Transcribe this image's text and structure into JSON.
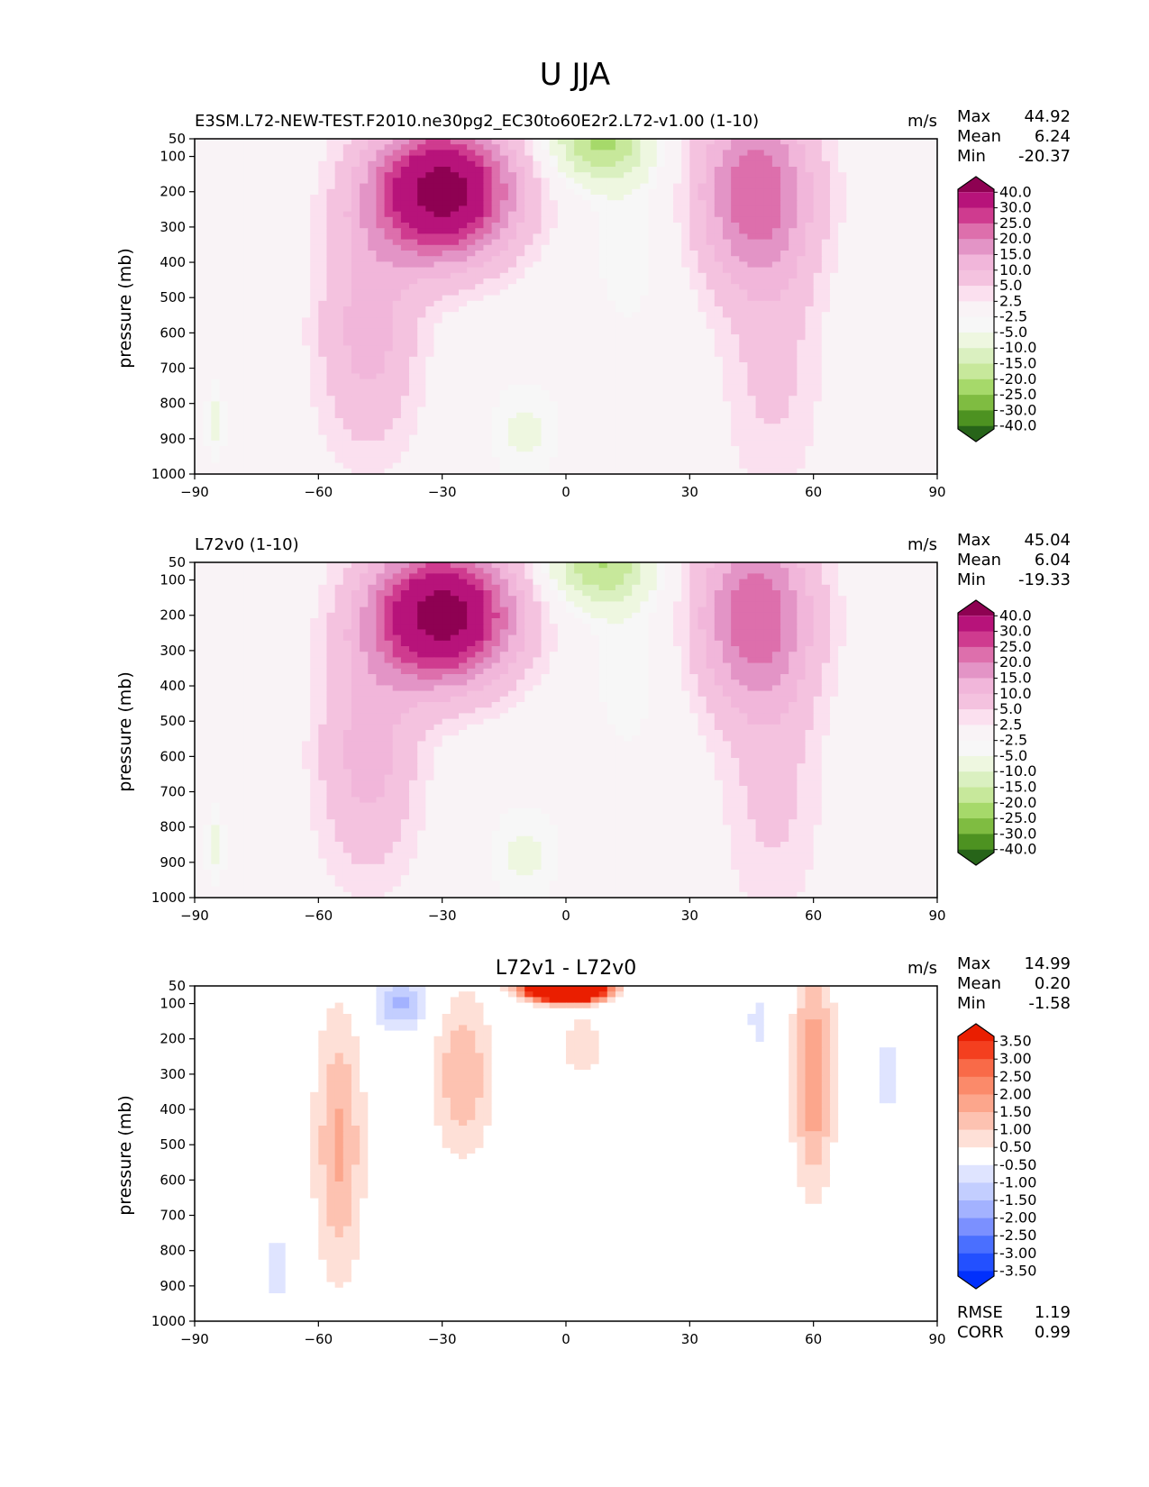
{
  "figure_title": "U JJA",
  "colors": {
    "model_levels": [
      "#276419",
      "#4d9221",
      "#7fbc41",
      "#a6d96a",
      "#c7e89b",
      "#daf0c0",
      "#eef7e0",
      "#f7f7f7",
      "#f9f3f6",
      "#fbe0ef",
      "#f4c2df",
      "#f1b6da",
      "#e394c6",
      "#dd6fac",
      "#cf3b8f",
      "#b7137a",
      "#8e0152"
    ],
    "diff_levels": [
      "#0130fc",
      "#2350ff",
      "#4a6fff",
      "#7b90ff",
      "#a3b2ff",
      "#c3ceff",
      "#dfe4ff",
      "#ffffff",
      "#fee0d7",
      "#fdc2b1",
      "#fca68c",
      "#fb8a6a",
      "#f96a48",
      "#f43f1f",
      "#ea1e00"
    ]
  },
  "chart_data": [
    {
      "type": "contour",
      "title": "E3SM.L72-NEW-TEST.F2010.ne30pg2_EC30to60E2r2.L72-v1.00 (1-10)",
      "units": "m/s",
      "xlabel": "",
      "ylabel": "pressure (mb)",
      "xlim": [
        -90,
        90
      ],
      "ylim": [
        1000,
        50
      ],
      "x_ticks": [
        -90,
        -60,
        -30,
        0,
        30,
        60,
        90
      ],
      "x_tick_labels": [
        "−90",
        "−60",
        "−30",
        "0",
        "30",
        "60",
        "90"
      ],
      "y_ticks": [
        50,
        100,
        200,
        300,
        400,
        500,
        600,
        700,
        800,
        900,
        1000
      ],
      "stats": {
        "Max": "44.92",
        "Mean": "6.24",
        "Min": "-20.37"
      },
      "colorbar_labels": [
        "40.0",
        "30.0",
        "25.0",
        "20.0",
        "15.0",
        "10.0",
        "5.0",
        "2.5",
        "-2.5",
        "-5.0",
        "-10.0",
        "-15.0",
        "-20.0",
        "-25.0",
        "-30.0",
        "-40.0"
      ],
      "features": [
        {
          "lat": -30,
          "p": 200,
          "peak": 44.92
        },
        {
          "lat": 46,
          "p": 200,
          "peak": 24
        },
        {
          "lat": 8,
          "p": 60,
          "peak": -20.37
        },
        {
          "lat": -10,
          "p": 880,
          "peak": -6
        }
      ]
    },
    {
      "type": "contour",
      "title": "L72v0 (1-10)",
      "units": "m/s",
      "xlabel": "",
      "ylabel": "pressure (mb)",
      "xlim": [
        -90,
        90
      ],
      "ylim": [
        1000,
        50
      ],
      "x_ticks": [
        -90,
        -60,
        -30,
        0,
        30,
        60,
        90
      ],
      "x_tick_labels": [
        "−90",
        "−60",
        "−30",
        "0",
        "30",
        "60",
        "90"
      ],
      "y_ticks": [
        50,
        100,
        200,
        300,
        400,
        500,
        600,
        700,
        800,
        900,
        1000
      ],
      "stats": {
        "Max": "45.04",
        "Mean": "6.04",
        "Min": "-19.33"
      },
      "colorbar_labels": [
        "40.0",
        "30.0",
        "25.0",
        "20.0",
        "15.0",
        "10.0",
        "5.0",
        "2.5",
        "-2.5",
        "-5.0",
        "-10.0",
        "-15.0",
        "-20.0",
        "-25.0",
        "-30.0",
        "-40.0"
      ],
      "features": [
        {
          "lat": -30,
          "p": 200,
          "peak": 45.04
        },
        {
          "lat": 46,
          "p": 200,
          "peak": 24
        },
        {
          "lat": 8,
          "p": 60,
          "peak": -19.33
        },
        {
          "lat": -10,
          "p": 880,
          "peak": -6
        }
      ]
    },
    {
      "type": "contour",
      "title": "L72v1 - L72v0",
      "units": "m/s",
      "xlabel": "",
      "ylabel": "pressure (mb)",
      "xlim": [
        -90,
        90
      ],
      "ylim": [
        1000,
        50
      ],
      "x_ticks": [
        -90,
        -60,
        -30,
        0,
        30,
        60,
        90
      ],
      "x_tick_labels": [
        "−90",
        "−60",
        "−30",
        "0",
        "30",
        "60",
        "90"
      ],
      "y_ticks": [
        50,
        100,
        200,
        300,
        400,
        500,
        600,
        700,
        800,
        900,
        1000
      ],
      "stats": {
        "Max": "14.99",
        "Mean": "0.20",
        "Min": "-1.58"
      },
      "colorbar_labels": [
        "3.50",
        "3.00",
        "2.50",
        "2.00",
        "1.50",
        "1.00",
        "0.50",
        "-0.50",
        "-1.00",
        "-1.50",
        "-2.00",
        "-2.50",
        "-3.00",
        "-3.50"
      ],
      "features": [
        {
          "lat": 0,
          "p": 60,
          "peak": 14.99
        },
        {
          "lat": -55,
          "p": 500,
          "peak": 1.6
        },
        {
          "lat": -25,
          "p": 300,
          "peak": 1.5
        },
        {
          "lat": 60,
          "p": 300,
          "peak": 2.0
        },
        {
          "lat": -40,
          "p": 100,
          "peak": -1.58
        },
        {
          "lat": -70,
          "p": 850,
          "peak": -0.7
        },
        {
          "lat": 78,
          "p": 300,
          "peak": -0.7
        }
      ],
      "rmse": "1.19",
      "corr": "0.99"
    }
  ]
}
